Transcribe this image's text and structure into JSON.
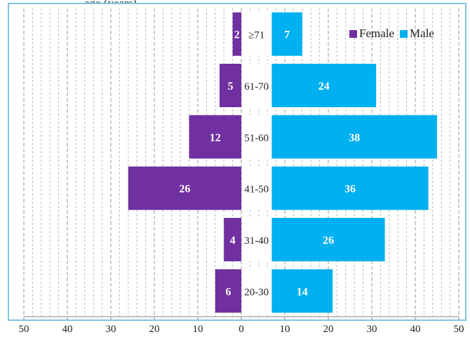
{
  "chart_data": {
    "type": "bar",
    "orientation": "horizontal",
    "style": "population-pyramid",
    "title_fragment": "age (years)",
    "categories": [
      "20-30",
      "31-40",
      "41-50",
      "51-60",
      "61-70",
      "≥71"
    ],
    "series": [
      {
        "name": "Female",
        "values": [
          6,
          4,
          26,
          12,
          5,
          2
        ],
        "side": "left",
        "color": "#7030a0"
      },
      {
        "name": "Male",
        "values": [
          14,
          26,
          36,
          38,
          24,
          7
        ],
        "side": "right",
        "color": "#00b0f0"
      }
    ],
    "xlim": [
      -50,
      50
    ],
    "x_ticks": [
      "50",
      "40",
      "30",
      "20",
      "10",
      "0",
      "10",
      "20",
      "30",
      "40",
      "50"
    ],
    "male_bar_axis_offset": 7,
    "grid": true,
    "gridline_style": "dashed vertical",
    "legend_position": "top-right",
    "colors": {
      "female": "#7030a0",
      "male": "#00b0f0",
      "frame": "#7fc4e6",
      "grid": "#b8b8b8"
    }
  }
}
